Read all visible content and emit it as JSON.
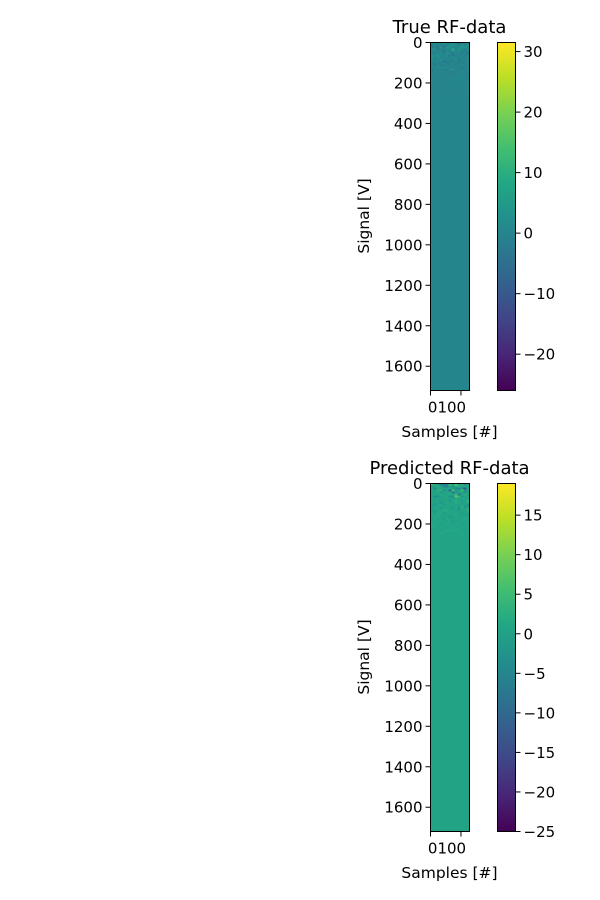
{
  "chart_data": [
    {
      "type": "heatmap",
      "title": "True RF-data",
      "xlabel": "Samples [#]",
      "ylabel": "Signal [V]",
      "x_range": [
        0,
        128
      ],
      "y_range": [
        0,
        1720
      ],
      "y_inverted": true,
      "x_tick_labels": [
        "0100"
      ],
      "y_ticks": [
        0,
        200,
        400,
        600,
        800,
        1000,
        1200,
        1400,
        1600
      ],
      "y_tick_labels": [
        "0",
        "200",
        "400",
        "600",
        "800",
        "1000",
        "1200",
        "1400",
        "1600"
      ],
      "dominant_value": 0,
      "noise_region_y": [
        0,
        250
      ],
      "colorbar": {
        "colormap": "viridis",
        "min": -26,
        "max": 31.5,
        "ticks": [
          30,
          20,
          10,
          0,
          -10,
          -20
        ],
        "tick_labels": [
          "30",
          "20",
          "10",
          "0",
          "−10",
          "−20"
        ]
      }
    },
    {
      "type": "heatmap",
      "title": "Predicted RF-data",
      "xlabel": "Samples [#]",
      "ylabel": "Signal [V]",
      "x_range": [
        0,
        128
      ],
      "y_range": [
        0,
        1720
      ],
      "y_inverted": true,
      "x_tick_labels": [
        "0100"
      ],
      "y_ticks": [
        0,
        200,
        400,
        600,
        800,
        1000,
        1200,
        1400,
        1600
      ],
      "y_tick_labels": [
        "0",
        "200",
        "400",
        "600",
        "800",
        "1000",
        "1200",
        "1400",
        "1600"
      ],
      "dominant_value": 0.5,
      "noise_region_y": [
        0,
        250
      ],
      "colorbar": {
        "colormap": "viridis",
        "min": -25,
        "max": 19,
        "ticks": [
          15,
          10,
          5,
          0,
          -5,
          -10,
          -15,
          -20,
          -25
        ],
        "tick_labels": [
          "15",
          "10",
          "5",
          "0",
          "−5",
          "−10",
          "−15",
          "−20",
          "−25"
        ]
      }
    }
  ]
}
